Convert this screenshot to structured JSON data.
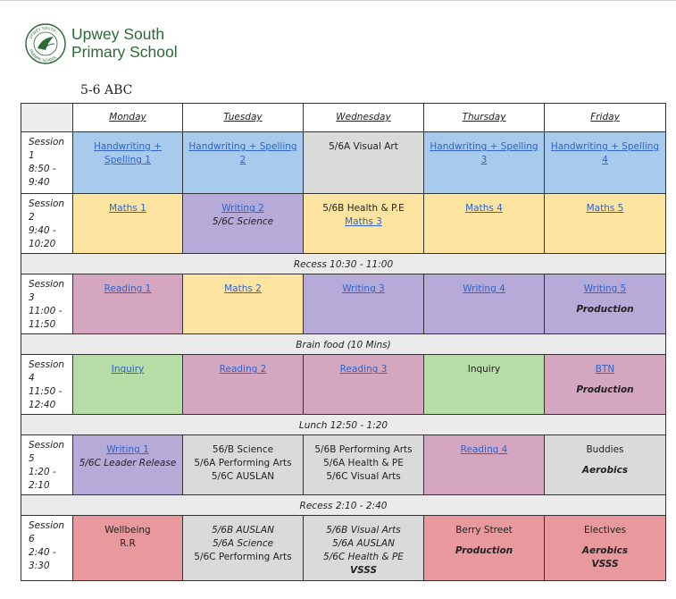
{
  "school": {
    "line1": "Upwey South",
    "line2": "Primary School",
    "logo_text": "UPWEY SOUTH PRIMARY SCHOOL"
  },
  "subtitle": "5-6 ABC",
  "days": [
    "Monday",
    "Tuesday",
    "Wednesday",
    "Thursday",
    "Friday"
  ],
  "sessions": [
    {
      "label": [
        "Session 1",
        "8:50 -",
        "9:40"
      ],
      "cells": [
        {
          "color": "#a8cbed",
          "lines": [
            {
              "text": "Handwriting + Spelling 1",
              "link": true
            }
          ]
        },
        {
          "color": "#a8cbed",
          "lines": [
            {
              "text": "Handwriting + Spelling 2",
              "link": true
            }
          ]
        },
        {
          "color": "#dadada",
          "lines": [
            {
              "text": "5/6A Visual Art"
            }
          ]
        },
        {
          "color": "#a8cbed",
          "lines": [
            {
              "text": "Handwriting + Spelling 3",
              "link": true
            }
          ]
        },
        {
          "color": "#a8cbed",
          "lines": [
            {
              "text": "Handwriting + Spelling 4",
              "link": true
            }
          ]
        }
      ]
    },
    {
      "label": [
        "Session 2",
        "9:40 -",
        "10:20"
      ],
      "cells": [
        {
          "color": "#fde4a0",
          "lines": [
            {
              "text": "Maths 1",
              "link": true
            }
          ]
        },
        {
          "color": "#b6aad9",
          "lines": [
            {
              "text": "Writing 2",
              "link": true
            },
            {
              "text": "5/6C Science",
              "italic": true
            }
          ]
        },
        {
          "color": "#fde4a0",
          "lines": [
            {
              "text": "5/6B Health & P.E"
            },
            {
              "text": "Maths 3",
              "link": true
            }
          ]
        },
        {
          "color": "#fde4a0",
          "lines": [
            {
              "text": "Maths 4",
              "link": true
            }
          ]
        },
        {
          "color": "#fde4a0",
          "lines": [
            {
              "text": "Maths 5",
              "link": true
            }
          ]
        }
      ]
    },
    {
      "break": "Recess 10:30 - 11:00"
    },
    {
      "label": [
        "Session 3",
        "11:00 -",
        "11:50"
      ],
      "cells": [
        {
          "color": "#d4a6bf",
          "lines": [
            {
              "text": "Reading 1",
              "link": true
            }
          ]
        },
        {
          "color": "#fde4a0",
          "lines": [
            {
              "text": "Maths 2",
              "link": true
            }
          ]
        },
        {
          "color": "#b6aad9",
          "lines": [
            {
              "text": "Writing 3",
              "link": true
            }
          ]
        },
        {
          "color": "#b6aad9",
          "lines": [
            {
              "text": "Writing 4",
              "link": true
            }
          ]
        },
        {
          "color": "#b6aad9",
          "lines": [
            {
              "text": "Writing 5",
              "link": true
            },
            {
              "text": "Production",
              "bold": true
            }
          ]
        }
      ]
    },
    {
      "break": "Brain food (10 Mins)"
    },
    {
      "label": [
        "Session 4",
        "11:50 -",
        "12:40"
      ],
      "cells": [
        {
          "color": "#b7dda7",
          "lines": [
            {
              "text": "Inquiry",
              "link": true
            }
          ]
        },
        {
          "color": "#d4a6bf",
          "lines": [
            {
              "text": "Reading 2",
              "link": true
            }
          ]
        },
        {
          "color": "#d4a6bf",
          "lines": [
            {
              "text": "Reading 3",
              "link": true
            }
          ]
        },
        {
          "color": "#b7dda7",
          "lines": [
            {
              "text": "Inquiry"
            }
          ]
        },
        {
          "color": "#d4a6bf",
          "lines": [
            {
              "text": "BTN",
              "link": true
            },
            {
              "text": "Production",
              "bold": true
            }
          ]
        }
      ]
    },
    {
      "break": "Lunch 12:50 - 1:20"
    },
    {
      "label": [
        "Session 5",
        "1:20 -",
        "2:10"
      ],
      "cells": [
        {
          "color": "#b6aad9",
          "lines": [
            {
              "text": "Writing 1",
              "link": true
            },
            {
              "text": "5/6C Leader Release",
              "italic": true
            }
          ]
        },
        {
          "color": "#dadada",
          "lines": [
            {
              "text": "56/B Science"
            },
            {
              "text": "5/6A Performing Arts"
            },
            {
              "text": "5/6C AUSLAN"
            }
          ]
        },
        {
          "color": "#dadada",
          "lines": [
            {
              "text": "5/6B Performing Arts"
            },
            {
              "text": "5/6A Health & PE"
            },
            {
              "text": "5/6C Visual Arts"
            }
          ]
        },
        {
          "color": "#d4a6bf",
          "lines": [
            {
              "text": "Reading 4",
              "link": true
            }
          ]
        },
        {
          "color": "#dadada",
          "lines": [
            {
              "text": "Buddies"
            },
            {
              "text": "Aerobics",
              "bold": true
            }
          ]
        }
      ]
    },
    {
      "break": "Recess 2:10 - 2:40"
    },
    {
      "label": [
        "Session 6",
        "2:40 -",
        "3:30"
      ],
      "cells": [
        {
          "color": "#e8999d",
          "lines": [
            {
              "text": "Wellbeing"
            },
            {
              "text": "R.R"
            }
          ]
        },
        {
          "color": "#dadada",
          "lines": [
            {
              "text": "5/6B AUSLAN",
              "italic": true
            },
            {
              "text": "5/6A Science",
              "italic": true
            },
            {
              "text": "5/6C Performing Arts"
            }
          ]
        },
        {
          "color": "#dadada",
          "lines": [
            {
              "text": "5/6B Visual Arts",
              "italic": true
            },
            {
              "text": "5/6A AUSLAN",
              "italic": true
            },
            {
              "text": "5/6C Health & PE",
              "italic": true
            },
            {
              "text": "VSSS",
              "bold": true,
              "tight": true
            }
          ]
        },
        {
          "color": "#e8999d",
          "lines": [
            {
              "text": "Berry Street"
            },
            {
              "text": "Production",
              "bold": true
            }
          ]
        },
        {
          "color": "#e8999d",
          "lines": [
            {
              "text": "Electives"
            },
            {
              "text": "Aerobics",
              "bold": true
            },
            {
              "text": "VSSS",
              "bold": true,
              "tight": true
            }
          ]
        }
      ]
    }
  ]
}
